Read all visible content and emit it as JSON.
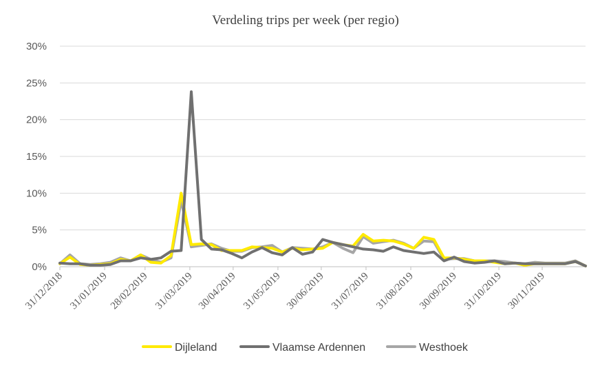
{
  "chart_data": {
    "type": "line",
    "title": "Verdeling trips per week (per regio)",
    "xlabel": "",
    "ylabel": "",
    "ylim": [
      0,
      0.3
    ],
    "y_ticks": [
      0,
      0.05,
      0.1,
      0.15,
      0.2,
      0.25,
      0.3
    ],
    "y_tick_labels": [
      "0%",
      "5%",
      "10%",
      "15%",
      "20%",
      "25%",
      "30%"
    ],
    "x_range": [
      "2018-12-31",
      "2019-12-30"
    ],
    "x_ticks": [
      "2018-12-31",
      "2019-01-31",
      "2019-02-28",
      "2019-03-31",
      "2019-04-30",
      "2019-05-31",
      "2019-06-30",
      "2019-07-31",
      "2019-08-31",
      "2019-09-30",
      "2019-10-31",
      "2019-11-30"
    ],
    "x_tick_labels": [
      "31/12/2018",
      "31/01/2019",
      "28/02/2019",
      "31/03/2019",
      "30/04/2019",
      "31/05/2019",
      "30/06/2019",
      "31/07/2019",
      "31/08/2019",
      "30/09/2019",
      "31/10/2019",
      "30/11/2019"
    ],
    "grid": true,
    "legend_position": "bottom",
    "x": [
      "2018-12-31",
      "2019-01-07",
      "2019-01-14",
      "2019-01-21",
      "2019-01-28",
      "2019-02-04",
      "2019-02-11",
      "2019-02-18",
      "2019-02-25",
      "2019-03-04",
      "2019-03-11",
      "2019-03-18",
      "2019-03-25",
      "2019-04-01",
      "2019-04-08",
      "2019-04-15",
      "2019-04-22",
      "2019-04-29",
      "2019-05-06",
      "2019-05-13",
      "2019-05-20",
      "2019-05-27",
      "2019-06-03",
      "2019-06-10",
      "2019-06-17",
      "2019-06-24",
      "2019-07-01",
      "2019-07-08",
      "2019-07-15",
      "2019-07-22",
      "2019-07-29",
      "2019-08-05",
      "2019-08-12",
      "2019-08-19",
      "2019-08-26",
      "2019-09-02",
      "2019-09-09",
      "2019-09-16",
      "2019-09-23",
      "2019-09-30",
      "2019-10-07",
      "2019-10-14",
      "2019-10-21",
      "2019-10-28",
      "2019-11-04",
      "2019-11-11",
      "2019-11-18",
      "2019-11-25",
      "2019-12-02",
      "2019-12-09",
      "2019-12-16",
      "2019-12-23",
      "2019-12-30"
    ],
    "series": [
      {
        "name": "Dijleland",
        "color": "#ffea00",
        "values": [
          0.004,
          0.013,
          0.003,
          0.002,
          0.003,
          0.004,
          0.01,
          0.008,
          0.016,
          0.006,
          0.005,
          0.015,
          0.1,
          0.03,
          0.031,
          0.03,
          0.022,
          0.022,
          0.022,
          0.027,
          0.026,
          0.025,
          0.02,
          0.025,
          0.023,
          0.024,
          0.025,
          0.033,
          0.03,
          0.028,
          0.044,
          0.035,
          0.036,
          0.035,
          0.031,
          0.025,
          0.04,
          0.037,
          0.012,
          0.012,
          0.01,
          0.008,
          0.008,
          0.006,
          0.004,
          0.005,
          0.002,
          0.004,
          0.004,
          0.004,
          0.004,
          0.007,
          0.001
        ]
      },
      {
        "name": "Vlaamse Ardennen",
        "color": "#707070",
        "values": [
          0.005,
          0.004,
          0.004,
          0.002,
          0.002,
          0.003,
          0.008,
          0.008,
          0.012,
          0.01,
          0.012,
          0.021,
          0.022,
          0.238,
          0.037,
          0.024,
          0.023,
          0.018,
          0.012,
          0.02,
          0.026,
          0.019,
          0.016,
          0.026,
          0.017,
          0.02,
          0.037,
          0.033,
          0.03,
          0.027,
          0.024,
          0.023,
          0.021,
          0.027,
          0.022,
          0.02,
          0.018,
          0.02,
          0.008,
          0.013,
          0.007,
          0.005,
          0.006,
          0.008,
          0.004,
          0.005,
          0.004,
          0.004,
          0.004,
          0.004,
          0.004,
          0.007,
          0.001
        ]
      },
      {
        "name": "Westhoek",
        "color": "#a6a6a6",
        "values": [
          0.004,
          0.016,
          0.004,
          0.003,
          0.004,
          0.006,
          0.012,
          0.008,
          0.016,
          0.01,
          0.006,
          0.012,
          0.09,
          0.027,
          0.029,
          0.031,
          0.025,
          0.021,
          0.021,
          0.026,
          0.027,
          0.029,
          0.02,
          0.026,
          0.025,
          0.024,
          0.027,
          0.033,
          0.025,
          0.019,
          0.041,
          0.032,
          0.034,
          0.036,
          0.032,
          0.025,
          0.035,
          0.034,
          0.01,
          0.011,
          0.011,
          0.008,
          0.008,
          0.008,
          0.007,
          0.005,
          0.004,
          0.006,
          0.005,
          0.005,
          0.005,
          0.008,
          0.001
        ]
      }
    ]
  }
}
